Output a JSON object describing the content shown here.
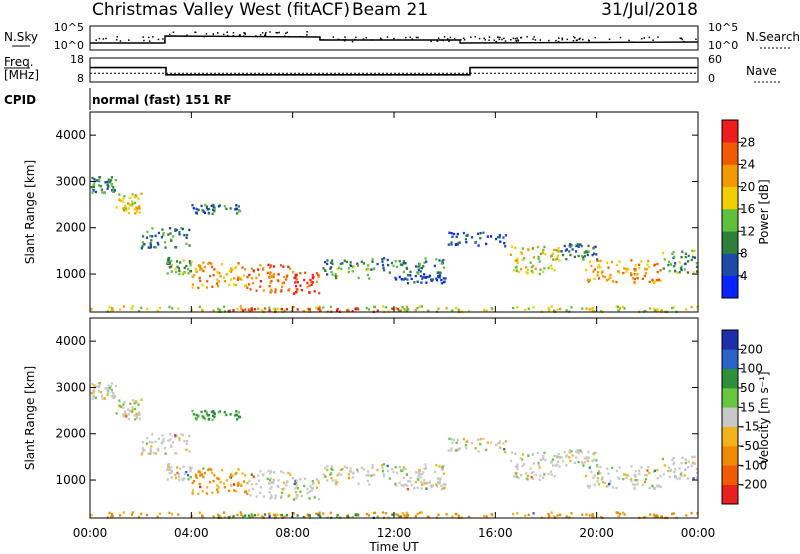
{
  "header": {
    "station": "Christmas Valley West (fitACF)",
    "beam": "Beam 21",
    "date": "31/Jul/2018"
  },
  "noise_panel": {
    "left_label": "N.Sky",
    "right_label": "N.Search",
    "left_ticks": [
      "10^5",
      "10^0"
    ],
    "right_ticks": [
      "10^5",
      "10^0"
    ]
  },
  "freq_panel": {
    "left_label_1": "Freq.",
    "left_label_2": "[MHz]",
    "right_label": "Nave",
    "left_ticks": [
      "18",
      "8"
    ],
    "right_ticks": [
      "60",
      "0"
    ],
    "freq_segments": [
      {
        "start_h": 0,
        "end_h": 3,
        "mhz": 14
      },
      {
        "start_h": 3,
        "end_h": 15,
        "mhz": 11
      },
      {
        "start_h": 15,
        "end_h": 24,
        "mhz": 14
      }
    ],
    "nave_level": 22
  },
  "cpid": {
    "label": "CPID",
    "value": "normal (fast) 151 RF"
  },
  "x_axis": {
    "label": "Time UT",
    "ticks": [
      "00:00",
      "04:00",
      "08:00",
      "12:00",
      "16:00",
      "20:00",
      "00:00"
    ]
  },
  "power_panel": {
    "ylabel": "Slant Range [km]",
    "yticks": [
      "1000",
      "2000",
      "3000",
      "4000"
    ],
    "cbar_label": "Power [dB]",
    "cbar_ticks": [
      "4",
      "8",
      "12",
      "16",
      "20",
      "24",
      "28"
    ],
    "cbar_colors": [
      "#0a22ff",
      "#1c4aa8",
      "#2f7f3a",
      "#5fbf3f",
      "#f0d000",
      "#f39a00",
      "#f05a00",
      "#ee1c1c"
    ]
  },
  "velocity_panel": {
    "ylabel": "Slant Range [km]",
    "yticks": [
      "1000",
      "2000",
      "3000",
      "4000"
    ],
    "cbar_label": "Velocity [m s⁻¹]",
    "cbar_ticks": [
      "200",
      "100",
      "50",
      "15",
      "-15",
      "-50",
      "-100",
      "-200"
    ],
    "cbar_colors": [
      "#1e2faa",
      "#2a62c8",
      "#2e8f3a",
      "#68c640",
      "#c8c8c8",
      "#f2b219",
      "#f08a00",
      "#f05a00",
      "#e82020"
    ]
  },
  "chart_data": {
    "type": "heatmap",
    "x_unit": "hours UT",
    "xlim": [
      0,
      24
    ],
    "ylim": [
      180,
      4500
    ],
    "scatter_regions": [
      {
        "t0": 0.0,
        "t1": 1.0,
        "r0": 2750,
        "r1": 3100,
        "power": 10,
        "vel": 0
      },
      {
        "t0": 1.0,
        "t1": 2.0,
        "r0": 2300,
        "r1": 2750,
        "power": 18,
        "vel": 0
      },
      {
        "t0": 2.0,
        "t1": 4.0,
        "r0": 1550,
        "r1": 2000,
        "power": 9,
        "vel": 0
      },
      {
        "t0": 4.0,
        "t1": 6.0,
        "r0": 2300,
        "r1": 2500,
        "power": 8,
        "vel": 40
      },
      {
        "t0": 3.0,
        "t1": 4.0,
        "r0": 1000,
        "r1": 1350,
        "power": 12,
        "vel": 0
      },
      {
        "t0": 4.0,
        "t1": 6.2,
        "r0": 700,
        "r1": 1250,
        "power": 22,
        "vel": -40
      },
      {
        "t0": 6.2,
        "t1": 8.0,
        "r0": 600,
        "r1": 1200,
        "power": 25,
        "vel": 0
      },
      {
        "t0": 8.0,
        "t1": 9.0,
        "r0": 550,
        "r1": 1050,
        "power": 28,
        "vel": 0
      },
      {
        "t0": 9.0,
        "t1": 11.0,
        "r0": 900,
        "r1": 1300,
        "power": 12,
        "vel": 0
      },
      {
        "t0": 11.0,
        "t1": 14.0,
        "r0": 1000,
        "r1": 1350,
        "power": 9,
        "vel": 0
      },
      {
        "t0": 12.0,
        "t1": 14.0,
        "r0": 800,
        "r1": 1000,
        "power": 5,
        "vel": 0
      },
      {
        "t0": 14.0,
        "t1": 16.5,
        "r0": 1600,
        "r1": 1900,
        "power": 6,
        "vel": 0
      },
      {
        "t0": 16.5,
        "t1": 18.5,
        "r0": 1000,
        "r1": 1600,
        "power": 18,
        "vel": 0
      },
      {
        "t0": 18.5,
        "t1": 20.0,
        "r0": 1300,
        "r1": 1650,
        "power": 8,
        "vel": 0
      },
      {
        "t0": 19.5,
        "t1": 22.5,
        "r0": 800,
        "r1": 1300,
        "power": 22,
        "vel": 0
      },
      {
        "t0": 22.5,
        "t1": 24.0,
        "r0": 1000,
        "r1": 1500,
        "power": 12,
        "vel": 0
      },
      {
        "t0": 0.0,
        "t1": 24.0,
        "r0": 180,
        "r1": 300,
        "power": 17,
        "vel": -40
      },
      {
        "t0": 5.0,
        "t1": 13.0,
        "r0": 180,
        "r1": 260,
        "power": 28,
        "vel": 40
      }
    ]
  }
}
